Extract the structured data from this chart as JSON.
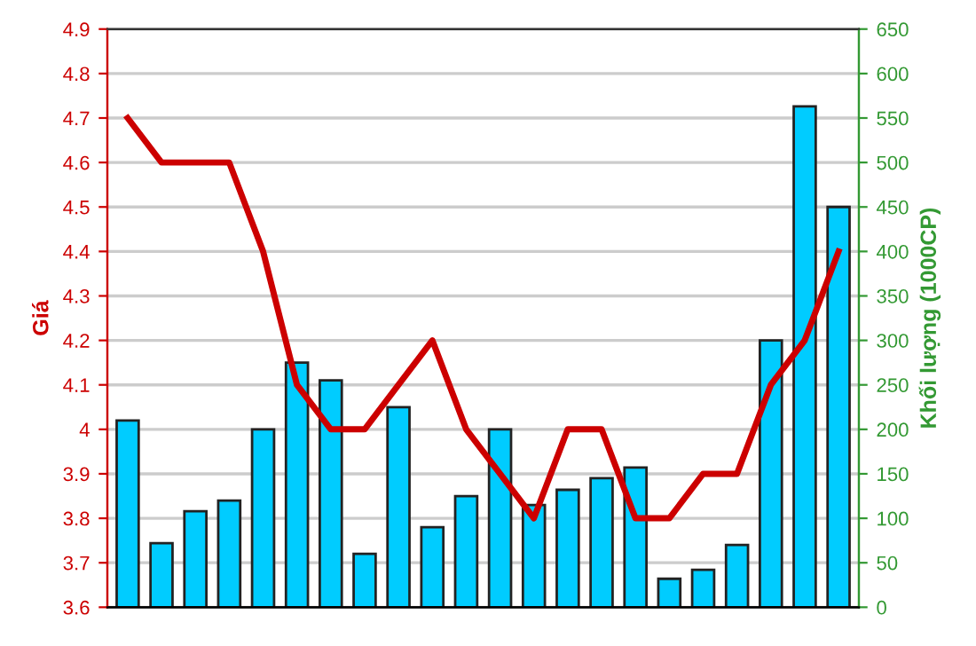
{
  "chart_data": {
    "type": "bar",
    "ylabel": "Giá",
    "y2label": "Khối lượng (1000CP)",
    "categories": [
      null,
      null,
      null,
      null,
      null,
      null,
      null,
      null,
      null,
      null,
      null,
      null,
      null,
      null,
      null,
      null,
      null,
      null,
      null,
      null,
      null,
      null
    ],
    "series": [
      {
        "axis": "y2",
        "color": "#00ccff",
        "values": [
          210,
          72,
          108,
          120,
          200,
          275,
          255,
          60,
          225,
          90,
          125,
          200,
          115,
          132,
          145,
          157,
          32,
          42,
          70,
          300,
          563,
          450
        ]
      },
      {
        "type": "line",
        "axis": "y",
        "color": "#cc0000",
        "values": [
          4.7,
          4.6,
          4.6,
          4.6,
          4.4,
          4.1,
          4.0,
          4.0,
          4.1,
          4.2,
          4.0,
          3.9,
          3.8,
          4.0,
          4.0,
          3.8,
          3.8,
          3.9,
          3.9,
          4.1,
          4.2,
          4.4
        ]
      }
    ],
    "ylim": [
      3.6,
      4.9
    ],
    "yticks": [
      3.6,
      3.7,
      3.8,
      3.9,
      4,
      4.1,
      4.2,
      4.3,
      4.4,
      4.5,
      4.6,
      4.7,
      4.8,
      4.9
    ],
    "y2lim": [
      0,
      650
    ],
    "y2ticks": [
      0,
      50,
      100,
      150,
      200,
      250,
      300,
      350,
      400,
      450,
      500,
      550,
      600,
      650
    ],
    "grid": "y",
    "tick_labels": "y",
    "legend": false,
    "marker": "none",
    "line_style": "solid"
  }
}
